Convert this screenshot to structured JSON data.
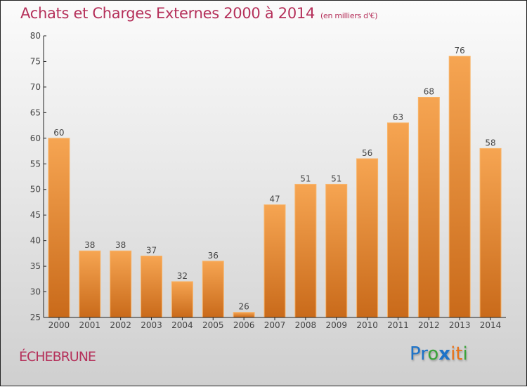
{
  "header": {
    "title": "Achats et Charges Externes 2000 à 2014",
    "unit": "(en milliers d'€)"
  },
  "footer": {
    "commune": "ÉCHEBRUNE",
    "logo": {
      "letters": [
        {
          "char": "P",
          "color": "#1e73c8"
        },
        {
          "char": "r",
          "color": "#1e73c8"
        },
        {
          "char": "o",
          "color": "#3aa33a"
        },
        {
          "char": "x",
          "color": "#1e73c8"
        },
        {
          "char": "i",
          "color": "#e8731a"
        },
        {
          "char": "t",
          "color": "#e8731a"
        },
        {
          "char": "i",
          "color": "#3aa33a"
        }
      ]
    }
  },
  "colors": {
    "title": "#b5305a",
    "bar_top": "#f6a552",
    "bar_bottom": "#c96a1a",
    "bar_edge": "#f8b56a"
  },
  "chart_data": {
    "type": "bar",
    "title": "Achats et Charges Externes 2000 à 2014",
    "subtitle": "(en milliers d'€)",
    "xlabel": "",
    "ylabel": "",
    "categories": [
      "2000",
      "2001",
      "2002",
      "2003",
      "2004",
      "2005",
      "2006",
      "2007",
      "2008",
      "2009",
      "2010",
      "2011",
      "2012",
      "2013",
      "2014"
    ],
    "values": [
      60,
      38,
      38,
      37,
      32,
      36,
      26,
      47,
      51,
      51,
      56,
      63,
      68,
      76,
      58
    ],
    "ylim": [
      25,
      80
    ],
    "yticks": [
      25,
      30,
      35,
      40,
      45,
      50,
      55,
      60,
      65,
      70,
      75,
      80
    ],
    "grid": false,
    "data_labels": true
  }
}
